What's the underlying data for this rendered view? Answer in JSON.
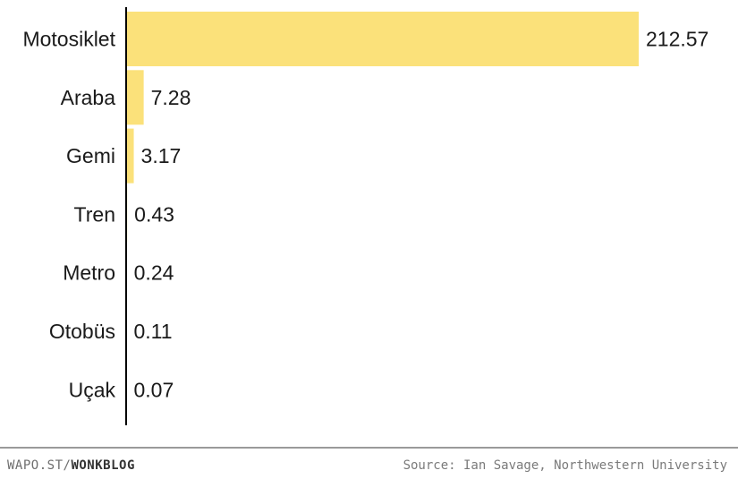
{
  "chart_data": {
    "type": "bar",
    "orientation": "horizontal",
    "categories": [
      "Motosiklet",
      "Araba",
      "Gemi",
      "Tren",
      "Metro",
      "Otobüs",
      "Uçak"
    ],
    "values": [
      212.57,
      7.28,
      3.17,
      0.43,
      0.24,
      0.11,
      0.07
    ],
    "value_labels": [
      "212.57",
      "7.28",
      "3.17",
      "0.43",
      "0.24",
      "0.11",
      "0.07"
    ],
    "bar_color": "#fbe17a",
    "xlim": [
      0,
      212.57
    ],
    "grid": false,
    "title": "",
    "xlabel": "",
    "ylabel": ""
  },
  "footer": {
    "brand_prefix": "WAPO.ST/",
    "brand_name": "WONKBLOG",
    "source": "Source: Ian Savage, Northwestern University"
  }
}
